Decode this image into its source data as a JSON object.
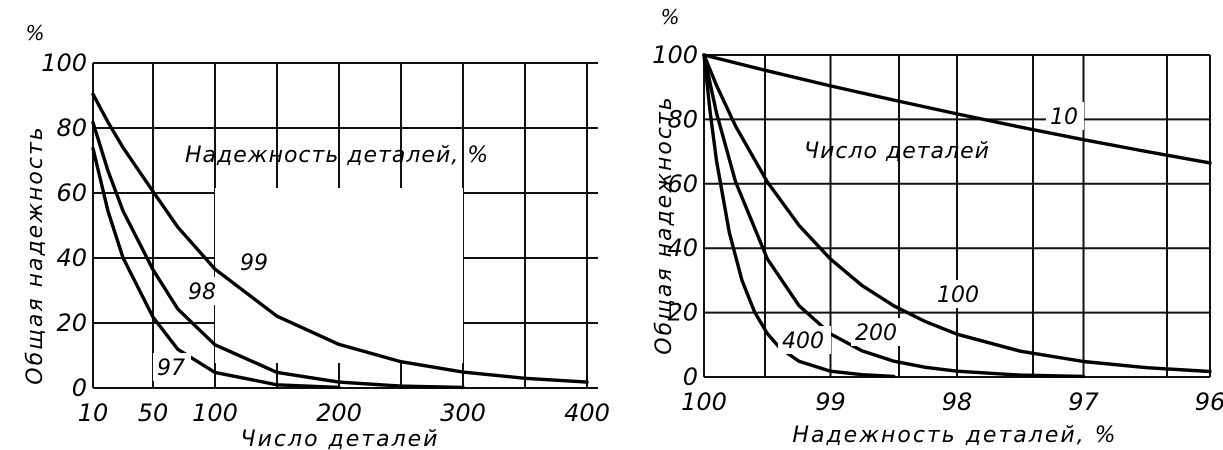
{
  "chart_data": [
    {
      "type": "line",
      "xlabel": "Число деталей",
      "ylabel": "Общая надежность",
      "y_unit": "%",
      "legend_title": "Надежность деталей, %",
      "xlim": [
        10,
        400
      ],
      "ylim": [
        0,
        100
      ],
      "x_ticks": [
        10,
        50,
        100,
        200,
        300,
        400
      ],
      "x_tick_labels": [
        "10",
        "50",
        "100",
        "200",
        "300",
        "400"
      ],
      "y_ticks": [
        0,
        20,
        40,
        60,
        80,
        100
      ],
      "y_tick_labels": [
        "0",
        "20",
        "40",
        "60",
        "80",
        "100"
      ],
      "grid": true,
      "series": [
        {
          "name": "99",
          "x": [
            10,
            20,
            30,
            50,
            70,
            100,
            150,
            200,
            250,
            300,
            350,
            400
          ],
          "y": [
            90.4,
            81.8,
            74.0,
            60.5,
            49.5,
            36.6,
            22.1,
            13.4,
            8.1,
            4.9,
            3.0,
            1.8
          ]
        },
        {
          "name": "98",
          "x": [
            5,
            10,
            20,
            30,
            50,
            70,
            100,
            150,
            200,
            250,
            300
          ],
          "y": [
            90.4,
            81.7,
            66.8,
            54.5,
            36.4,
            24.3,
            13.3,
            4.8,
            1.8,
            0.6,
            0.2
          ]
        },
        {
          "name": "97",
          "x": [
            2,
            5,
            10,
            20,
            30,
            50,
            70,
            100,
            150,
            200
          ],
          "y": [
            94.1,
            85.9,
            73.7,
            54.4,
            40.1,
            21.8,
            11.9,
            4.8,
            1.0,
            0.2
          ]
        }
      ]
    },
    {
      "type": "line",
      "xlabel": "Надежность деталей, %",
      "ylabel": "Общая надежность",
      "y_unit": "%",
      "legend_title": "Число деталей",
      "xlim": [
        100,
        96
      ],
      "ylim": [
        0,
        100
      ],
      "x_ticks": [
        100,
        99,
        98,
        97,
        96
      ],
      "x_tick_labels": [
        "100",
        "99",
        "98",
        "97",
        "96"
      ],
      "y_ticks": [
        0,
        20,
        40,
        60,
        80,
        100
      ],
      "y_tick_labels": [
        "0",
        "20",
        "40",
        "60",
        "80",
        "100"
      ],
      "grid": true,
      "series": [
        {
          "name": "10",
          "x": [
            100,
            99.5,
            99,
            98.5,
            98,
            97.5,
            97,
            96.5,
            96
          ],
          "y": [
            100,
            95.1,
            90.4,
            86.0,
            81.7,
            77.6,
            73.7,
            70.0,
            66.5
          ]
        },
        {
          "name": "100",
          "x": [
            100,
            99.9,
            99.75,
            99.5,
            99.25,
            99,
            98.75,
            98.5,
            98.25,
            98,
            97.5,
            97,
            96.5,
            96
          ],
          "y": [
            100,
            90.5,
            77.9,
            60.6,
            47.1,
            36.6,
            28.4,
            22.1,
            17.2,
            13.3,
            8.0,
            4.8,
            2.9,
            1.7
          ]
        },
        {
          "name": "200",
          "x": [
            100,
            99.9,
            99.75,
            99.5,
            99.25,
            99,
            98.75,
            98.5,
            98.25,
            98,
            97.5,
            97
          ],
          "y": [
            100,
            81.9,
            60.6,
            36.7,
            22.2,
            13.4,
            8.1,
            4.9,
            3.0,
            1.8,
            0.6,
            0.2
          ]
        },
        {
          "name": "400",
          "x": [
            100,
            99.95,
            99.9,
            99.8,
            99.7,
            99.6,
            99.5,
            99.4,
            99.25,
            99,
            98.75,
            98.5
          ],
          "y": [
            100,
            81.9,
            67.0,
            44.9,
            30.1,
            20.2,
            13.5,
            9.0,
            4.9,
            1.8,
            0.7,
            0.2
          ]
        }
      ]
    }
  ]
}
